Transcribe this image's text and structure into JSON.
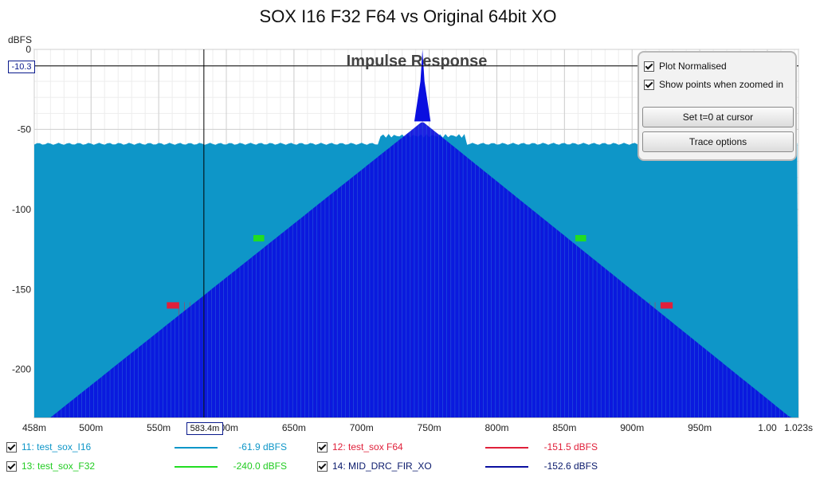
{
  "chart_data": {
    "type": "line",
    "title": "SOX I16 F32 F64 vs Original 64bit XO",
    "inner_title": "Impulse Response",
    "ylabel": "dBFS",
    "xlim": [
      0.458,
      1.023
    ],
    "ylim": [
      -230,
      0
    ],
    "x_ticks": [
      "458m",
      "500m",
      "550m",
      "600m",
      "650m",
      "700m",
      "750m",
      "800m",
      "850m",
      "900m",
      "950m",
      "1.00",
      "1.023s"
    ],
    "y_ticks": [
      "0",
      "-50",
      "-100",
      "-150",
      "-200"
    ],
    "grid": true,
    "peak_x": 0.745,
    "series": [
      {
        "name": "11: test_sox_I16",
        "color": "#0e96c8",
        "level": "-61.9 dBFS",
        "noise_floor_db": -59
      },
      {
        "name": "12: test_sox F64",
        "color": "#e0203a",
        "level": "-151.5 dBFS",
        "noise_floor_db": -158,
        "edges": [
          0.565,
          0.921
        ]
      },
      {
        "name": "13: test_sox_F32",
        "color": "#22dd22",
        "level": "-240.0 dBFS",
        "noise_floor_db": -116,
        "edges": [
          0.628,
          0.858
        ]
      },
      {
        "name": "14: MID_DRC_FIR_XO",
        "color": "#0a0fe0",
        "level": "-152.6 dBFS",
        "peak_db": 0,
        "floor_db": -230
      }
    ]
  },
  "cursor": {
    "x_label": "583.4m",
    "y_label": "-10.3"
  },
  "options": {
    "plot_normalised": "Plot Normalised",
    "show_points": "Show points when zoomed in",
    "set_t0_button": "Set t=0 at cursor",
    "trace_options_button": "Trace options"
  }
}
